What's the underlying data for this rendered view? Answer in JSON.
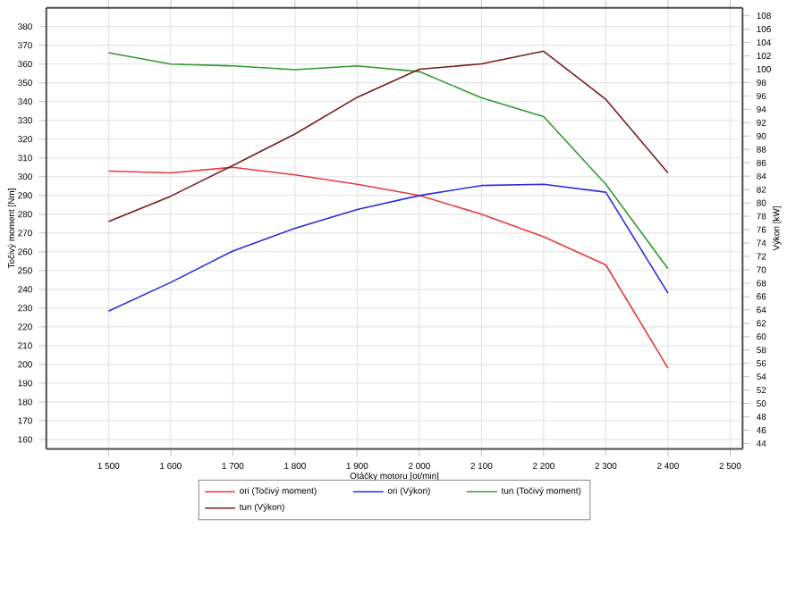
{
  "chart_data": {
    "type": "line",
    "xlabel": "Otáčky motoru [ot/min]",
    "ylabel": "Točivý moment [Nm]",
    "y2label": "Výkon [kW]",
    "x": [
      1500,
      1600,
      1700,
      1800,
      1900,
      2000,
      2100,
      2200,
      2300,
      2400
    ],
    "series": [
      {
        "name": "ori (Točivý moment)",
        "color": "#e8383d",
        "values": [
          303,
          302,
          305,
          301,
          296,
          290,
          280,
          268,
          253,
          198
        ]
      },
      {
        "name": "ori (Výkon)",
        "color": "#2b2bd9",
        "axis": "y2",
        "values": [
          63.8,
          68.1,
          72.8,
          76.2,
          79.0,
          81.1,
          82.6,
          82.8,
          81.6,
          66.5
        ]
      },
      {
        "name": "tun (Točivý moment)",
        "color": "#2e9a2e",
        "values": [
          366,
          360,
          359,
          357,
          359,
          356,
          342,
          332,
          296,
          251
        ]
      },
      {
        "name": "tun (Výkon)",
        "color": "#7a1a1a",
        "axis": "y2",
        "values": [
          77.2,
          81.0,
          85.6,
          90.3,
          95.8,
          100.0,
          100.8,
          102.7,
          95.5,
          84.5
        ]
      }
    ],
    "xlim": [
      1400,
      2520
    ],
    "xticks": [
      {
        "value": 1500,
        "label": "1 500"
      },
      {
        "value": 1600,
        "label": "1 600"
      },
      {
        "value": 1700,
        "label": "1 700"
      },
      {
        "value": 1800,
        "label": "1 800"
      },
      {
        "value": 1900,
        "label": "1 900"
      },
      {
        "value": 2000,
        "label": "2 000"
      },
      {
        "value": 2100,
        "label": "2 100"
      },
      {
        "value": 2200,
        "label": "2 200"
      },
      {
        "value": 2300,
        "label": "2 300"
      },
      {
        "value": 2400,
        "label": "2 400"
      },
      {
        "value": 2500,
        "label": "2 500"
      }
    ],
    "ylim": [
      155,
      390
    ],
    "yticks": [
      160,
      170,
      180,
      190,
      200,
      210,
      220,
      230,
      240,
      250,
      260,
      270,
      280,
      290,
      300,
      310,
      320,
      330,
      340,
      350,
      360,
      370,
      380
    ],
    "y2lim": [
      43.2,
      109.2
    ],
    "y2ticks": [
      44,
      46,
      48,
      50,
      52,
      54,
      56,
      58,
      60,
      62,
      64,
      66,
      68,
      70,
      72,
      74,
      76,
      78,
      80,
      82,
      84,
      86,
      88,
      90,
      92,
      94,
      96,
      98,
      100,
      102,
      104,
      106,
      108
    ],
    "grid": true,
    "legend": "bottom",
    "marker": "none",
    "line_style": "solid"
  }
}
